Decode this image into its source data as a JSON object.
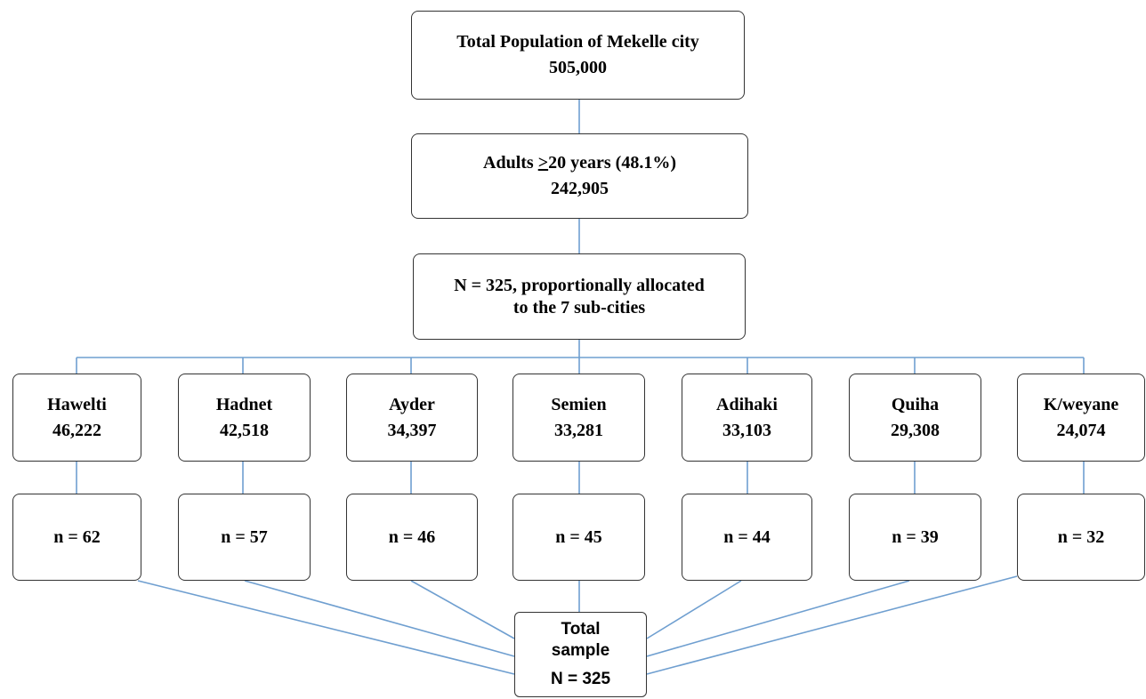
{
  "root": {
    "title": "Total Population of Mekelle city",
    "value": "505,000"
  },
  "adults": {
    "title_prefix": "Adults ",
    "title_symbol": ">",
    "title_suffix": "20 years (48.1%)",
    "value": "242,905"
  },
  "allocation": {
    "line1": "N = 325, proportionally allocated",
    "line2": "to the 7 sub-cities"
  },
  "subcities": [
    {
      "name": "Hawelti",
      "population": "46,222",
      "sample": "n = 62"
    },
    {
      "name": "Hadnet",
      "population": "42,518",
      "sample": "n = 57"
    },
    {
      "name": "Ayder",
      "population": "34,397",
      "sample": "n = 46"
    },
    {
      "name": "Semien",
      "population": "33,281",
      "sample": "n = 45"
    },
    {
      "name": "Adihaki",
      "population": "33,103",
      "sample": "n = 44"
    },
    {
      "name": "Quiha",
      "population": "29,308",
      "sample": "n = 39"
    },
    {
      "name": "K/weyane",
      "population": "24,074",
      "sample": "n = 32"
    }
  ],
  "total": {
    "line1": "Total",
    "line2": "sample",
    "value": "N = 325"
  },
  "colors": {
    "connector": "#6f9fd0",
    "box_border": "#333333"
  }
}
